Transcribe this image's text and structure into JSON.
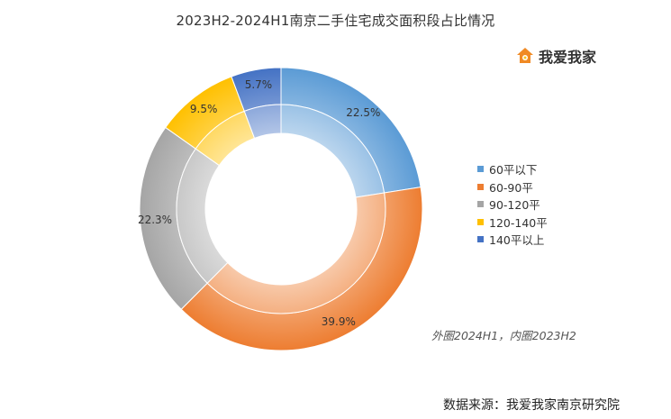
{
  "chart_data": {
    "type": "donut",
    "title": "2023H2-2024H1南京二手住宅成交面积段占比情况",
    "categories": [
      "60平以下",
      "60-90平",
      "90-120平",
      "120-140平",
      "140平以上"
    ],
    "series": [
      {
        "ring": "outer",
        "values": [
          22.5,
          39.9,
          22.3,
          9.5,
          5.7
        ],
        "labels": [
          "22.5%",
          "39.9%",
          "22.3%",
          "9.5%",
          "5.7%"
        ]
      },
      {
        "ring": "inner",
        "values": [
          22.5,
          39.9,
          22.3,
          9.5,
          5.7
        ]
      }
    ],
    "colors": [
      "#5b9bd5",
      "#ed7d31",
      "#a5a5a5",
      "#ffc000",
      "#4472c4"
    ],
    "legend_position": "right",
    "note": "外圈2024H1，内圈2023H2"
  },
  "brand": {
    "name": "我爱我家",
    "icon": "house-logo-icon"
  },
  "source": "数据来源：我爱我家南京研究院"
}
